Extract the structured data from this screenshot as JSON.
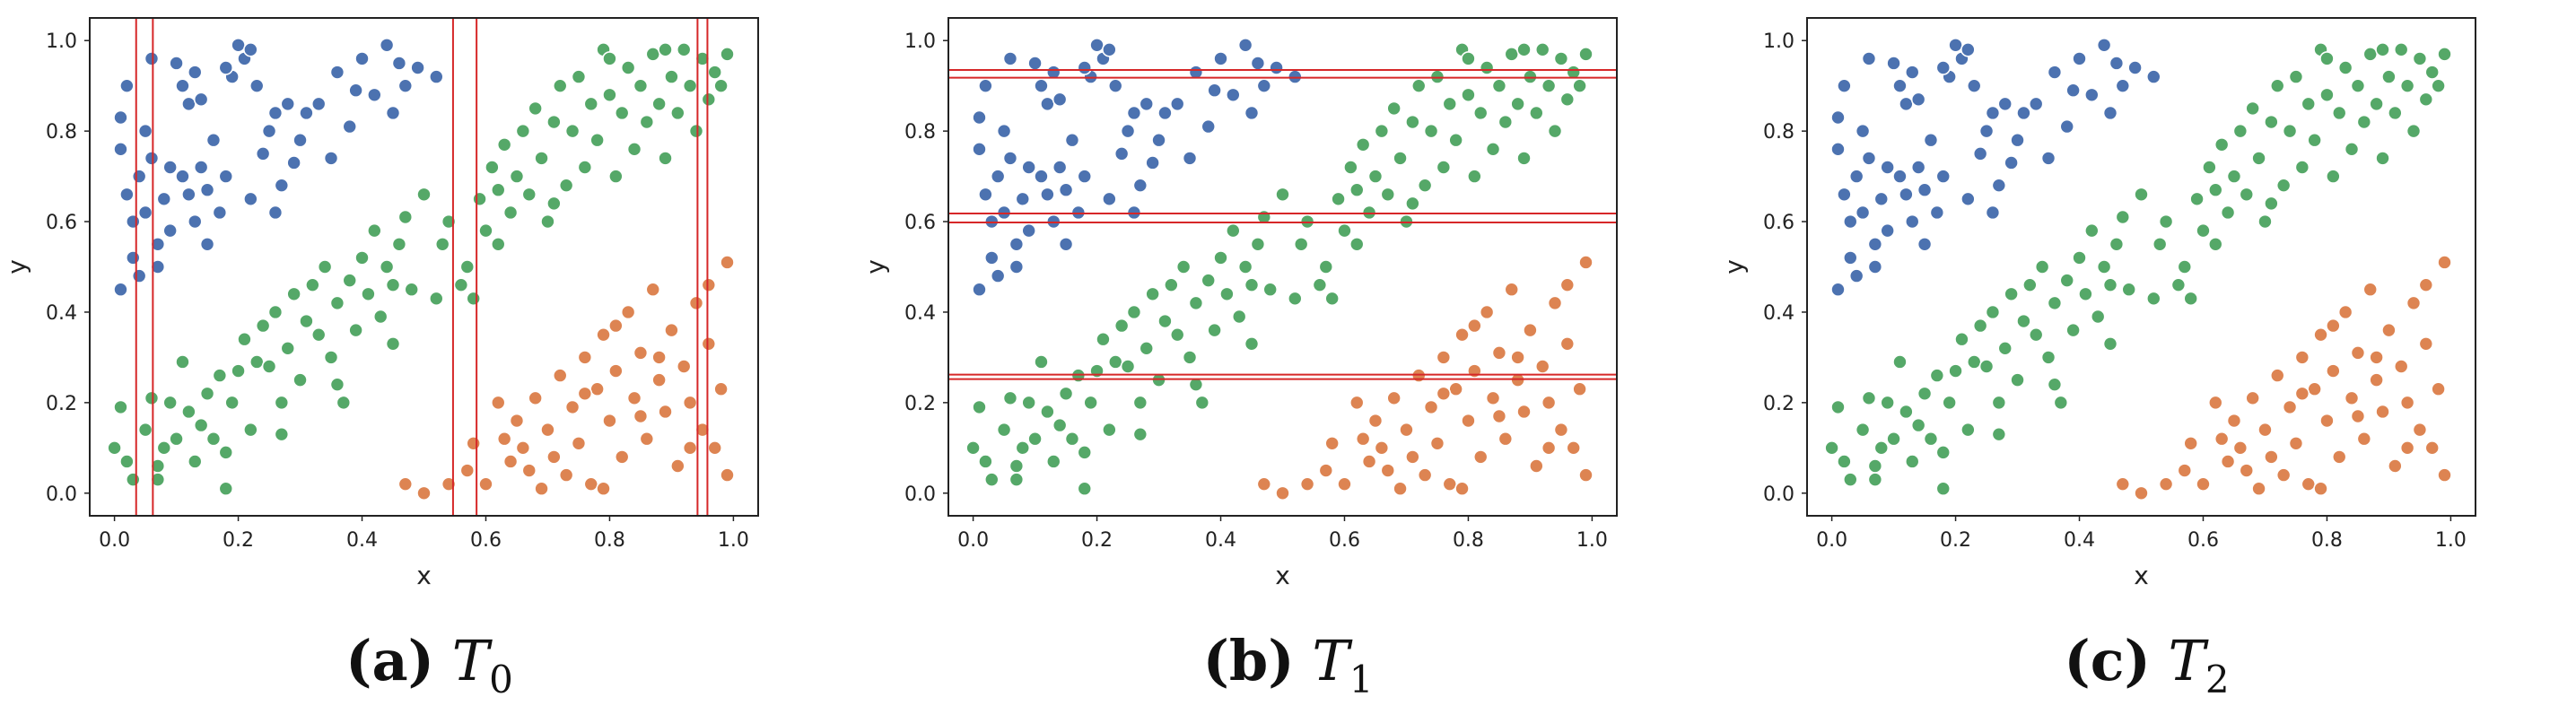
{
  "figure": {
    "colors": {
      "class_blue": "#4c72b0",
      "class_green": "#55a868",
      "class_orange": "#dd8452",
      "split_line": "#d62728",
      "frame": "#222222"
    }
  },
  "chart_data": [
    {
      "type": "scatter",
      "panel": "a",
      "caption": {
        "tag": "(a)",
        "symbol": "T",
        "subscript": "0"
      },
      "xlabel": "x",
      "ylabel": "y",
      "xlim": [
        -0.04,
        1.04
      ],
      "ylim": [
        -0.05,
        1.05
      ],
      "xticks": [
        0.0,
        0.2,
        0.4,
        0.6,
        0.8,
        1.0
      ],
      "yticks": [
        0.0,
        0.2,
        0.4,
        0.6,
        0.8,
        1.0
      ],
      "xtick_labels": [
        "0.0",
        "0.2",
        "0.4",
        "0.6",
        "0.8",
        "1.0"
      ],
      "ytick_labels": [
        "0.0",
        "0.2",
        "0.4",
        "0.6",
        "0.8",
        "1.0"
      ],
      "split_orientation": "vertical",
      "split_lines": [
        0.035,
        0.062,
        0.547,
        0.585,
        0.942,
        0.958
      ],
      "data_source": "shared_points"
    },
    {
      "type": "scatter",
      "panel": "b",
      "caption": {
        "tag": "(b)",
        "symbol": "T",
        "subscript": "1"
      },
      "xlabel": "x",
      "ylabel": "y",
      "xlim": [
        -0.04,
        1.04
      ],
      "ylim": [
        -0.05,
        1.05
      ],
      "xticks": [
        0.0,
        0.2,
        0.4,
        0.6,
        0.8,
        1.0
      ],
      "yticks": [
        0.0,
        0.2,
        0.4,
        0.6,
        0.8,
        1.0
      ],
      "xtick_labels": [
        "0.0",
        "0.2",
        "0.4",
        "0.6",
        "0.8",
        "1.0"
      ],
      "ytick_labels": [
        "0.0",
        "0.2",
        "0.4",
        "0.6",
        "0.8",
        "1.0"
      ],
      "split_orientation": "horizontal",
      "split_lines": [
        0.918,
        0.935,
        0.598,
        0.618,
        0.252,
        0.262
      ],
      "data_source": "shared_points"
    },
    {
      "type": "scatter",
      "panel": "c",
      "caption": {
        "tag": "(c)",
        "symbol": "T",
        "subscript": "2"
      },
      "xlabel": "x",
      "ylabel": "y",
      "xlim": [
        -0.04,
        1.04
      ],
      "ylim": [
        -0.05,
        1.05
      ],
      "xticks": [
        0.0,
        0.2,
        0.4,
        0.6,
        0.8,
        1.0
      ],
      "yticks": [
        0.0,
        0.2,
        0.4,
        0.6,
        0.8,
        1.0
      ],
      "xtick_labels": [
        "0.0",
        "0.2",
        "0.4",
        "0.6",
        "0.8",
        "1.0"
      ],
      "ytick_labels": [
        "0.0",
        "0.2",
        "0.4",
        "0.6",
        "0.8",
        "1.0"
      ],
      "split_orientation": "none",
      "split_lines": [],
      "data_source": "shared_points"
    }
  ],
  "shared_points": {
    "blue": [
      [
        0.01,
        0.83
      ],
      [
        0.02,
        0.9
      ],
      [
        0.01,
        0.76
      ],
      [
        0.02,
        0.66
      ],
      [
        0.03,
        0.6
      ],
      [
        0.01,
        0.45
      ],
      [
        0.04,
        0.7
      ],
      [
        0.05,
        0.62
      ],
      [
        0.03,
        0.52
      ],
      [
        0.06,
        0.96
      ],
      [
        0.05,
        0.8
      ],
      [
        0.07,
        0.55
      ],
      [
        0.08,
        0.65
      ],
      [
        0.07,
        0.5
      ],
      [
        0.09,
        0.72
      ],
      [
        0.1,
        0.95
      ],
      [
        0.11,
        0.9
      ],
      [
        0.12,
        0.86
      ],
      [
        0.13,
        0.93
      ],
      [
        0.11,
        0.7
      ],
      [
        0.12,
        0.66
      ],
      [
        0.14,
        0.72
      ],
      [
        0.13,
        0.6
      ],
      [
        0.15,
        0.55
      ],
      [
        0.14,
        0.87
      ],
      [
        0.16,
        0.78
      ],
      [
        0.17,
        0.62
      ],
      [
        0.18,
        0.7
      ],
      [
        0.19,
        0.92
      ],
      [
        0.2,
        0.99
      ],
      [
        0.21,
        0.96
      ],
      [
        0.22,
        0.98
      ],
      [
        0.23,
        0.9
      ],
      [
        0.24,
        0.75
      ],
      [
        0.22,
        0.65
      ],
      [
        0.25,
        0.8
      ],
      [
        0.26,
        0.84
      ],
      [
        0.27,
        0.68
      ],
      [
        0.28,
        0.86
      ],
      [
        0.3,
        0.78
      ],
      [
        0.31,
        0.84
      ],
      [
        0.33,
        0.86
      ],
      [
        0.35,
        0.74
      ],
      [
        0.36,
        0.93
      ],
      [
        0.38,
        0.81
      ],
      [
        0.4,
        0.96
      ],
      [
        0.42,
        0.88
      ],
      [
        0.44,
        0.99
      ],
      [
        0.46,
        0.95
      ],
      [
        0.47,
        0.9
      ],
      [
        0.49,
        0.94
      ],
      [
        0.52,
        0.92
      ],
      [
        0.45,
        0.84
      ],
      [
        0.39,
        0.89
      ],
      [
        0.29,
        0.73
      ],
      [
        0.09,
        0.58
      ],
      [
        0.06,
        0.74
      ],
      [
        0.15,
        0.67
      ],
      [
        0.04,
        0.48
      ],
      [
        0.18,
        0.94
      ],
      [
        0.26,
        0.62
      ]
    ],
    "green": [
      [
        0.0,
        0.1
      ],
      [
        0.01,
        0.19
      ],
      [
        0.02,
        0.07
      ],
      [
        0.03,
        0.03
      ],
      [
        0.05,
        0.14
      ],
      [
        0.06,
        0.21
      ],
      [
        0.07,
        0.06
      ],
      [
        0.08,
        0.1
      ],
      [
        0.07,
        0.03
      ],
      [
        0.1,
        0.12
      ],
      [
        0.11,
        0.29
      ],
      [
        0.12,
        0.18
      ],
      [
        0.13,
        0.07
      ],
      [
        0.14,
        0.15
      ],
      [
        0.15,
        0.22
      ],
      [
        0.16,
        0.12
      ],
      [
        0.17,
        0.26
      ],
      [
        0.18,
        0.01
      ],
      [
        0.19,
        0.2
      ],
      [
        0.2,
        0.27
      ],
      [
        0.21,
        0.34
      ],
      [
        0.22,
        0.14
      ],
      [
        0.23,
        0.29
      ],
      [
        0.24,
        0.37
      ],
      [
        0.25,
        0.28
      ],
      [
        0.26,
        0.4
      ],
      [
        0.27,
        0.2
      ],
      [
        0.28,
        0.32
      ],
      [
        0.29,
        0.44
      ],
      [
        0.3,
        0.25
      ],
      [
        0.31,
        0.38
      ],
      [
        0.32,
        0.46
      ],
      [
        0.33,
        0.35
      ],
      [
        0.34,
        0.5
      ],
      [
        0.35,
        0.3
      ],
      [
        0.36,
        0.42
      ],
      [
        0.37,
        0.2
      ],
      [
        0.38,
        0.47
      ],
      [
        0.39,
        0.36
      ],
      [
        0.4,
        0.52
      ],
      [
        0.41,
        0.44
      ],
      [
        0.42,
        0.58
      ],
      [
        0.43,
        0.39
      ],
      [
        0.44,
        0.5
      ],
      [
        0.45,
        0.33
      ],
      [
        0.46,
        0.55
      ],
      [
        0.47,
        0.61
      ],
      [
        0.48,
        0.45
      ],
      [
        0.5,
        0.66
      ],
      [
        0.52,
        0.43
      ],
      [
        0.54,
        0.6
      ],
      [
        0.56,
        0.46
      ],
      [
        0.57,
        0.5
      ],
      [
        0.58,
        0.43
      ],
      [
        0.59,
        0.65
      ],
      [
        0.6,
        0.58
      ],
      [
        0.61,
        0.72
      ],
      [
        0.62,
        0.55
      ],
      [
        0.63,
        0.77
      ],
      [
        0.64,
        0.62
      ],
      [
        0.65,
        0.7
      ],
      [
        0.66,
        0.8
      ],
      [
        0.67,
        0.66
      ],
      [
        0.68,
        0.85
      ],
      [
        0.69,
        0.74
      ],
      [
        0.7,
        0.6
      ],
      [
        0.71,
        0.82
      ],
      [
        0.72,
        0.9
      ],
      [
        0.73,
        0.68
      ],
      [
        0.74,
        0.8
      ],
      [
        0.75,
        0.92
      ],
      [
        0.76,
        0.72
      ],
      [
        0.77,
        0.86
      ],
      [
        0.78,
        0.78
      ],
      [
        0.79,
        0.98
      ],
      [
        0.8,
        0.88
      ],
      [
        0.81,
        0.7
      ],
      [
        0.82,
        0.84
      ],
      [
        0.83,
        0.94
      ],
      [
        0.84,
        0.76
      ],
      [
        0.85,
        0.9
      ],
      [
        0.86,
        0.82
      ],
      [
        0.87,
        0.97
      ],
      [
        0.88,
        0.86
      ],
      [
        0.89,
        0.74
      ],
      [
        0.9,
        0.92
      ],
      [
        0.91,
        0.84
      ],
      [
        0.92,
        0.98
      ],
      [
        0.93,
        0.9
      ],
      [
        0.94,
        0.8
      ],
      [
        0.95,
        0.96
      ],
      [
        0.96,
        0.87
      ],
      [
        0.97,
        0.93
      ],
      [
        0.98,
        0.9
      ],
      [
        0.99,
        0.97
      ],
      [
        0.09,
        0.2
      ],
      [
        0.18,
        0.09
      ],
      [
        0.27,
        0.13
      ],
      [
        0.36,
        0.24
      ],
      [
        0.45,
        0.46
      ],
      [
        0.53,
        0.55
      ],
      [
        0.62,
        0.67
      ],
      [
        0.71,
        0.64
      ],
      [
        0.8,
        0.96
      ],
      [
        0.89,
        0.98
      ]
    ],
    "orange": [
      [
        0.47,
        0.02
      ],
      [
        0.5,
        0.0
      ],
      [
        0.54,
        0.02
      ],
      [
        0.57,
        0.05
      ],
      [
        0.58,
        0.11
      ],
      [
        0.6,
        0.02
      ],
      [
        0.62,
        0.2
      ],
      [
        0.63,
        0.12
      ],
      [
        0.64,
        0.07
      ],
      [
        0.65,
        0.16
      ],
      [
        0.66,
        0.1
      ],
      [
        0.67,
        0.05
      ],
      [
        0.68,
        0.21
      ],
      [
        0.69,
        0.01
      ],
      [
        0.7,
        0.14
      ],
      [
        0.71,
        0.08
      ],
      [
        0.72,
        0.26
      ],
      [
        0.73,
        0.04
      ],
      [
        0.74,
        0.19
      ],
      [
        0.75,
        0.11
      ],
      [
        0.76,
        0.3
      ],
      [
        0.77,
        0.02
      ],
      [
        0.78,
        0.23
      ],
      [
        0.79,
        0.35
      ],
      [
        0.8,
        0.16
      ],
      [
        0.81,
        0.27
      ],
      [
        0.82,
        0.08
      ],
      [
        0.83,
        0.4
      ],
      [
        0.84,
        0.21
      ],
      [
        0.85,
        0.31
      ],
      [
        0.86,
        0.12
      ],
      [
        0.87,
        0.45
      ],
      [
        0.88,
        0.25
      ],
      [
        0.89,
        0.18
      ],
      [
        0.9,
        0.36
      ],
      [
        0.91,
        0.06
      ],
      [
        0.92,
        0.28
      ],
      [
        0.93,
        0.2
      ],
      [
        0.94,
        0.42
      ],
      [
        0.95,
        0.14
      ],
      [
        0.96,
        0.33
      ],
      [
        0.97,
        0.1
      ],
      [
        0.98,
        0.23
      ],
      [
        0.99,
        0.51
      ],
      [
        0.99,
        0.04
      ],
      [
        0.81,
        0.37
      ],
      [
        0.88,
        0.3
      ],
      [
        0.93,
        0.1
      ],
      [
        0.76,
        0.22
      ],
      [
        0.85,
        0.17
      ],
      [
        0.96,
        0.46
      ],
      [
        0.79,
        0.01
      ]
    ]
  }
}
